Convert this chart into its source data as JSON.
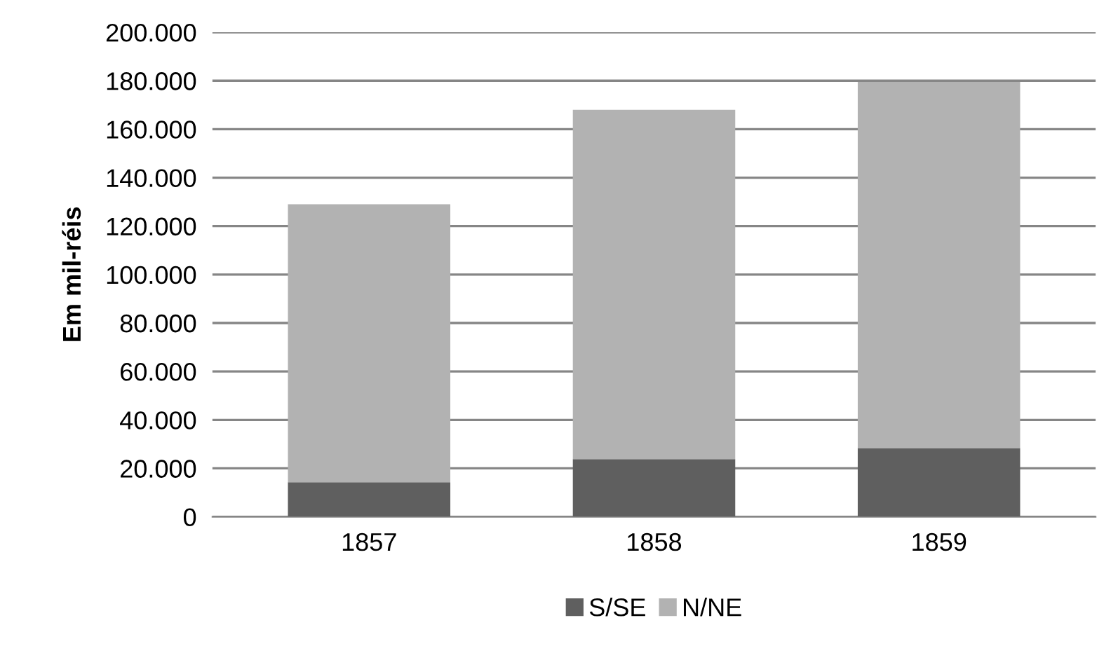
{
  "chart_data": {
    "type": "bar",
    "stacked": true,
    "ylabel": "Em mil-réis",
    "categories": [
      "1857",
      "1858",
      "1859"
    ],
    "series": [
      {
        "name": "S/SE",
        "color": "#5f5f5f",
        "values": [
          14300,
          23800,
          28400
        ]
      },
      {
        "name": "N/NE",
        "color": "#b2b2b2",
        "values": [
          114700,
          144200,
          151100
        ]
      }
    ],
    "ylim": [
      0,
      200000
    ],
    "yticks": [
      {
        "value": 0,
        "label": "0"
      },
      {
        "value": 20000,
        "label": "20.000"
      },
      {
        "value": 40000,
        "label": "40.000"
      },
      {
        "value": 60000,
        "label": "60.000"
      },
      {
        "value": 80000,
        "label": "80.000"
      },
      {
        "value": 100000,
        "label": "100.000"
      },
      {
        "value": 120000,
        "label": "120.000"
      },
      {
        "value": 140000,
        "label": "140.000"
      },
      {
        "value": 160000,
        "label": "160.000"
      },
      {
        "value": 180000,
        "label": "180.000"
      },
      {
        "value": 200000,
        "label": "200.000"
      }
    ],
    "grid": "y",
    "legend": "bottom"
  }
}
